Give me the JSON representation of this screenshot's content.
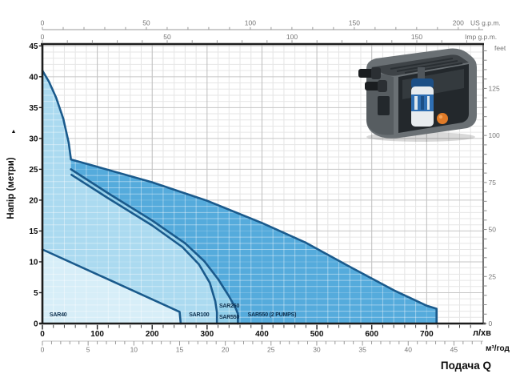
{
  "axes": {
    "us_gpm": {
      "unit_label": "US g.p.m.",
      "range": [
        0,
        212
      ],
      "minor_step": 10,
      "labeled_ticks": [
        0,
        50,
        100,
        150,
        200
      ]
    },
    "imp_gpm": {
      "unit_label": "Imp g.p.m.",
      "range": [
        0,
        176.6
      ],
      "minor_step": 10,
      "labeled_ticks": [
        0,
        50,
        100,
        150
      ]
    },
    "flow_lmin": {
      "unit_label": "л/хв",
      "range": [
        0,
        803
      ],
      "minor_step": 20,
      "labeled_ticks": [
        0,
        100,
        200,
        300,
        400,
        500,
        600,
        700
      ]
    },
    "flow_m3h": {
      "unit_label": "м³/год",
      "range": [
        0,
        48.2
      ],
      "minor_step": 1,
      "labeled_ticks": [
        0,
        5,
        10,
        15,
        20,
        25,
        30,
        35,
        40,
        45
      ]
    },
    "head_m": {
      "title": "Напір (метри)",
      "arrow_icon": "▲",
      "range": [
        0,
        45.3
      ],
      "minor_step": 1,
      "labeled_ticks": [
        0,
        5,
        10,
        15,
        20,
        25,
        30,
        35,
        40,
        45
      ]
    },
    "head_feet": {
      "unit_label": "feet",
      "range": [
        0,
        148.6
      ],
      "minor_step": 5,
      "labeled_ticks": [
        0,
        25,
        50,
        75,
        100,
        125
      ]
    }
  },
  "flow_axis_title": "Подача Q",
  "chart_data": {
    "type": "area",
    "x_unit": "l/min",
    "y_unit": "m",
    "curve_color": "#1a5a8c",
    "series": [
      {
        "name": "SAR550 (2 PUMPS)",
        "fill": "#55abdc",
        "max_flow_lmin": 718,
        "shutoff_head_m": 41,
        "points": [
          [
            0,
            41
          ],
          [
            12,
            39.2
          ],
          [
            25,
            36.6
          ],
          [
            38,
            33.2
          ],
          [
            48,
            29.3
          ],
          [
            52,
            26.6
          ],
          [
            100,
            25.4
          ],
          [
            200,
            22.9
          ],
          [
            300,
            19.9
          ],
          [
            400,
            16.3
          ],
          [
            480,
            13.1
          ],
          [
            560,
            9.2
          ],
          [
            640,
            5.4
          ],
          [
            700,
            2.9
          ],
          [
            718,
            2.4
          ],
          [
            718,
            0
          ]
        ]
      },
      {
        "name": "SAR550",
        "fill": "#8fcde9",
        "max_flow_lmin": 356,
        "shutoff_head_m": 25,
        "points": [
          [
            52,
            25
          ],
          [
            120,
            21.1
          ],
          [
            200,
            16.7
          ],
          [
            260,
            13
          ],
          [
            295,
            10.1
          ],
          [
            320,
            7.2
          ],
          [
            340,
            4.4
          ],
          [
            352,
            2.5
          ],
          [
            356,
            1.6
          ],
          [
            356,
            0
          ]
        ]
      },
      {
        "name": "SAR100",
        "fill": "#abdaf0",
        "max_flow_lmin": 318,
        "shutoff_head_m": 24.1,
        "points": [
          [
            53,
            24.1
          ],
          [
            120,
            20.3
          ],
          [
            200,
            15.9
          ],
          [
            255,
            12.4
          ],
          [
            285,
            9.6
          ],
          [
            305,
            6.6
          ],
          [
            315,
            3.6
          ],
          [
            318,
            1.8
          ],
          [
            318,
            0
          ]
        ]
      },
      {
        "name": "SAR40",
        "fill": "#d7eef8",
        "max_flow_lmin": 252,
        "shutoff_head_m": 12,
        "points": [
          [
            0,
            12
          ],
          [
            250,
            1.9
          ],
          [
            252,
            0
          ]
        ]
      }
    ],
    "region_labels": [
      {
        "text": "SAR40",
        "q": 13,
        "h": 1.5
      },
      {
        "text": "SAR100",
        "q": 267,
        "h": 1.5
      },
      {
        "text": "SAR250",
        "q": 322,
        "h": 2.9
      },
      {
        "text": "SAR550",
        "q": 322,
        "h": 1.1
      },
      {
        "text": "SAR550 (2 PUMPS)",
        "q": 374,
        "h": 1.5
      }
    ]
  }
}
